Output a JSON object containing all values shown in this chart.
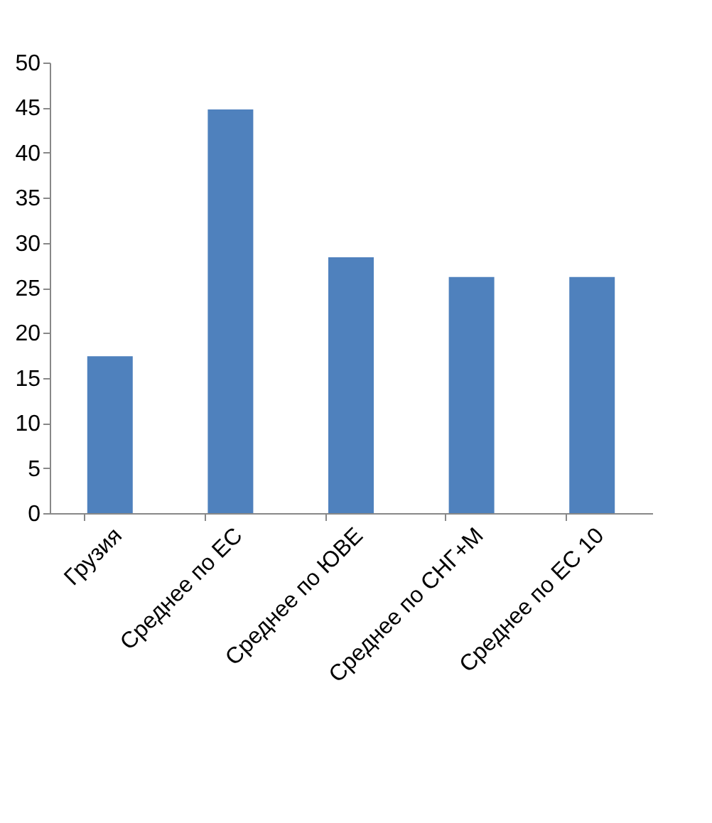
{
  "chart_data": {
    "type": "bar",
    "categories": [
      "Грузия",
      "Среднее по ЕС",
      "Среднее по ЮВЕ",
      "Среднее по СНГ+М",
      "Среднее по ЕС 10"
    ],
    "values": [
      17.4,
      44.8,
      28.4,
      26.2,
      26.2
    ],
    "color": "#4f81bd",
    "ylim": [
      0,
      50
    ],
    "yticks": [
      0,
      5,
      10,
      15,
      20,
      25,
      30,
      35,
      40,
      45,
      50
    ],
    "grid": false
  }
}
